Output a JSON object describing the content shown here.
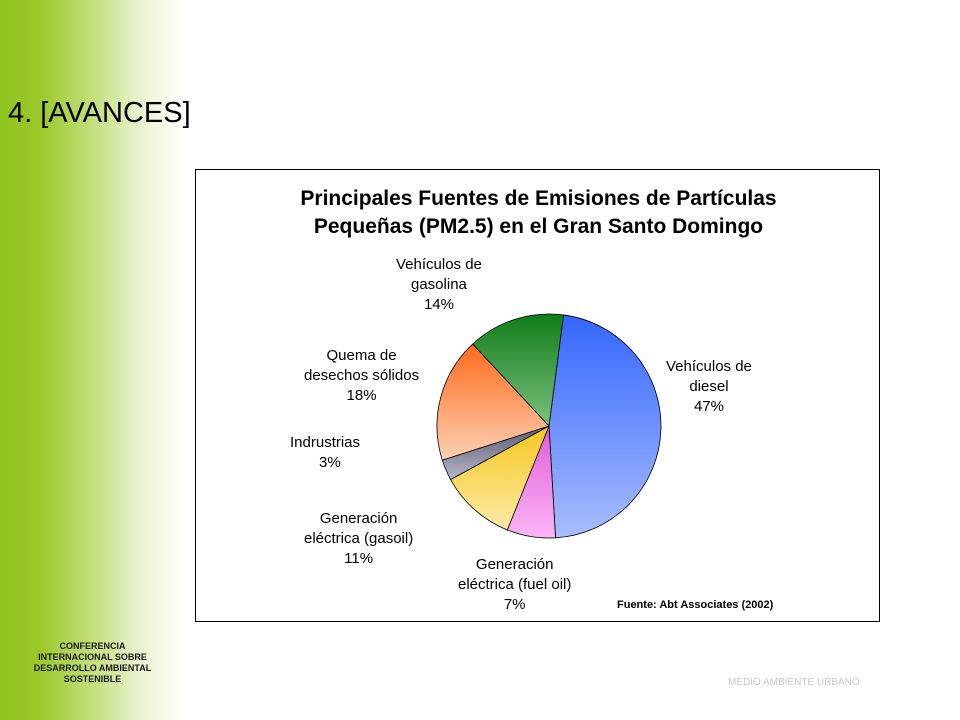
{
  "slide": {
    "title": "4. [AVANCES]",
    "footer_left": [
      "CONFERENCIA",
      "INTERNACIONAL SOBRE",
      "DESARROLLO AMBIENTAL",
      "SOSTENIBLE"
    ],
    "footer_right": "MEDIO AMBIENTE URBANO",
    "accent_color": "#8fc31f"
  },
  "chart_data": {
    "type": "pie",
    "title_lines": [
      "Principales Fuentes de Emisiones de Partículas",
      "Pequeñas (PM2.5) en el Gran Santo Domingo"
    ],
    "source": "Fuente: Abt Associates (2002)",
    "slices": [
      {
        "name_lines": [
          "Vehículos de",
          "diesel"
        ],
        "value": 47,
        "label": "47%",
        "color_light": "#a9bdfc",
        "color_dark": "#3366ff"
      },
      {
        "name_lines": [
          "Generación",
          "eléctrica (fuel oil)"
        ],
        "value": 7,
        "label": "7%",
        "color_light": "#fbb6f6",
        "color_dark": "#e35ad8"
      },
      {
        "name_lines": [
          "Generación",
          "eléctrica (gasoil)"
        ],
        "value": 11,
        "label": "11%",
        "color_light": "#fde9a8",
        "color_dark": "#f6c81d"
      },
      {
        "name_lines": [
          "Indrustrias"
        ],
        "value": 3,
        "label": "3%",
        "color_light": "#b7b7c9",
        "color_dark": "#5c5c72"
      },
      {
        "name_lines": [
          "Quema de",
          "desechos sólidos"
        ],
        "value": 18,
        "label": "18%",
        "color_light": "#fdd1b5",
        "color_dark": "#ff6a1a"
      },
      {
        "name_lines": [
          "Vehículos de",
          "gasolina"
        ],
        "value": 14,
        "label": "14%",
        "color_light": "#7cc07c",
        "color_dark": "#0f7d1a"
      }
    ]
  }
}
